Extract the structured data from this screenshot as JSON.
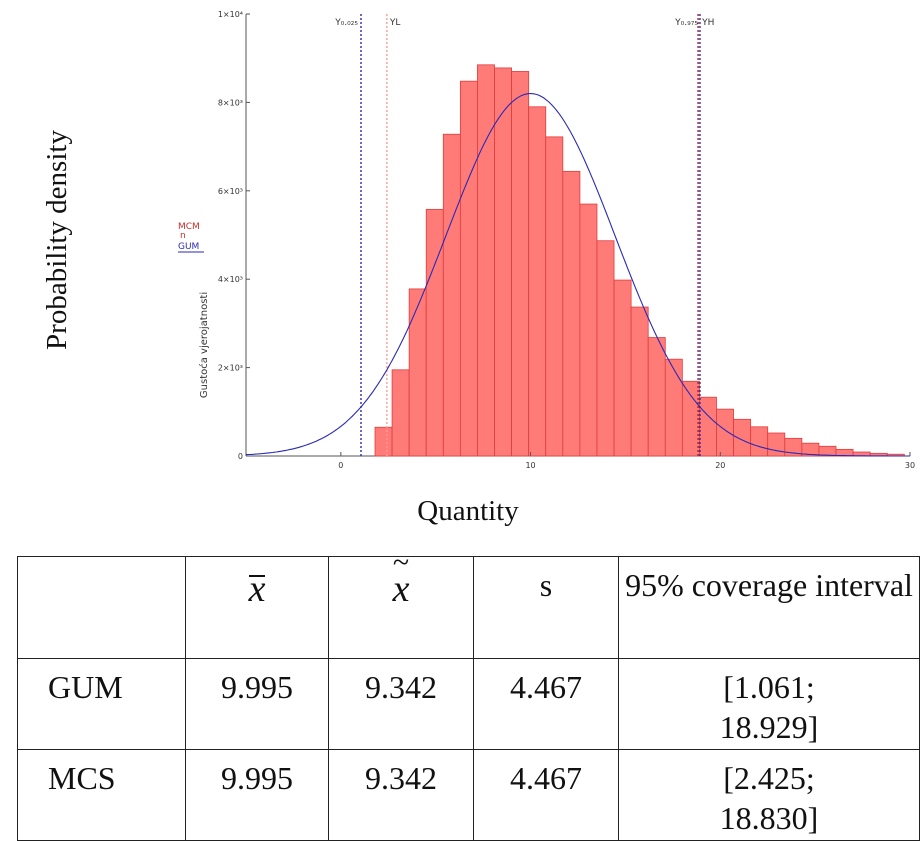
{
  "chart_data": {
    "type": "bar",
    "xlabel": "Quantity",
    "ylabel": "Probability density",
    "inner_ylabel": "Gustoća vjerojatnosti",
    "xlim": [
      -5,
      30
    ],
    "ylim": [
      0,
      10000
    ],
    "x_ticks": [
      0,
      10,
      20,
      30
    ],
    "x_tick_labels": [
      "0",
      "10",
      "20",
      "30"
    ],
    "y_ticks": [
      0,
      2000,
      4000,
      6000,
      8000,
      10000
    ],
    "y_tick_labels": [
      "0",
      "2×10³",
      "4×10³",
      "6×10³",
      "8×10³",
      "1×10⁴"
    ],
    "histogram": {
      "name": "MCM",
      "bin_width": 0.9,
      "bin_starts": [
        1.8,
        2.7,
        3.6,
        4.5,
        5.4,
        6.3,
        7.2,
        8.1,
        9.0,
        9.9,
        10.8,
        11.7,
        12.6,
        13.5,
        14.4,
        15.3,
        16.2,
        17.1,
        18.0,
        18.9,
        19.8,
        20.7,
        21.6,
        22.5,
        23.4,
        24.3,
        25.2,
        26.1,
        27.0,
        27.9,
        28.8
      ],
      "values": [
        650,
        1950,
        3780,
        5580,
        7280,
        8480,
        8850,
        8780,
        8700,
        7900,
        7220,
        6440,
        5700,
        4870,
        3980,
        3370,
        2680,
        2190,
        1690,
        1330,
        1060,
        830,
        660,
        520,
        400,
        290,
        220,
        150,
        90,
        60,
        40
      ],
      "color": "#ff7b78"
    },
    "curve": {
      "name": "GUM",
      "type": "normal",
      "mean": 9.995,
      "sd": 4.467,
      "peak": 8200,
      "color": "#2a2ab8"
    },
    "markers": [
      {
        "label": "Y₀.₀₂₅",
        "x": 1.061,
        "color": "#2a2ab8",
        "style": "dotted"
      },
      {
        "label": "YL",
        "x": 2.425,
        "color": "#ff9a9a",
        "style": "dotted"
      },
      {
        "label": "Y₀.₉₇₅",
        "x": 18.929,
        "color": "#2a2ab8",
        "style": "dotted"
      },
      {
        "label": "YH",
        "x": 18.83,
        "color": "#b02020",
        "style": "dotted"
      }
    ],
    "legend": [
      {
        "label": "MCM",
        "color": "#c0302a"
      },
      {
        "label": "GUM",
        "color": "#2a2ab8"
      }
    ]
  },
  "table": {
    "header": [
      "",
      "x̄",
      "x̃",
      "s",
      "95% coverage interval"
    ],
    "rows": [
      {
        "name": "GUM",
        "mean": "9.995",
        "median": "9.342",
        "s": "4.467",
        "ci_lower": "[1.061;",
        "ci_upper": "18.929]"
      },
      {
        "name": "MCS",
        "mean": "9.995",
        "median": "9.342",
        "s": "4.467",
        "ci_lower": "[2.425;",
        "ci_upper": "18.830]"
      }
    ]
  }
}
